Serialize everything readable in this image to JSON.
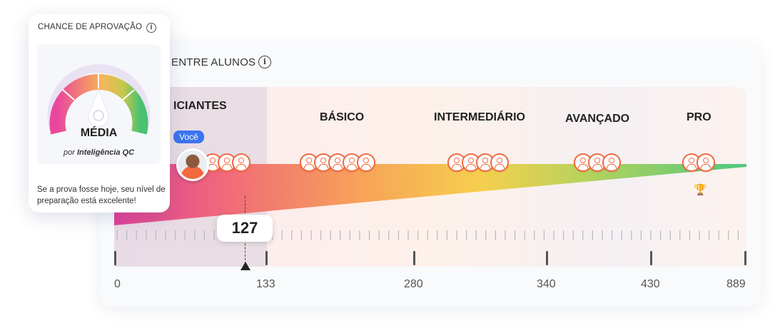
{
  "approval_card": {
    "title": "CHANCE DE APROVAÇÃO",
    "info_icon": "i",
    "gauge_level": "MÉDIA",
    "by_prefix": "por",
    "by_source": "Inteligência QC",
    "message": "Se a prova fosse hoje, seu nível de preparação está excelente!"
  },
  "ranking_card": {
    "title": "ENTRE ALUNOS",
    "info_icon": "i",
    "levels": [
      "ICIANTES",
      "BÁSICO",
      "INTERMEDIÁRIO",
      "AVANÇADO",
      "PRO"
    ],
    "you_badge": "Você",
    "user_score": "127",
    "axis_labels": [
      "0",
      "133",
      "280",
      "340",
      "430",
      "889"
    ],
    "avatar_counts": [
      3,
      5,
      4,
      3,
      2
    ],
    "colors": {
      "accent_orange": "#f3693f",
      "you_badge_blue": "#3b74f0"
    }
  }
}
